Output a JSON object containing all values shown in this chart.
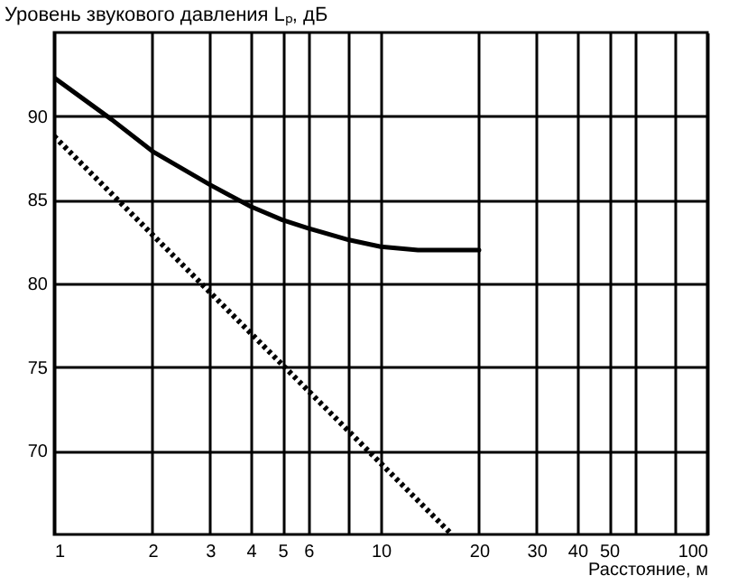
{
  "chart_data": {
    "type": "line",
    "ylabel": "Уровень звукового давления Lₚ, дБ",
    "xlabel": "Расстояние, м",
    "log": "x",
    "xlim": [
      1,
      100
    ],
    "xticks": [
      1,
      2,
      3,
      4,
      5,
      6,
      {
        "value": 8,
        "label": null
      },
      10,
      20,
      30,
      40,
      50,
      {
        "value": 60,
        "label": null
      },
      {
        "value": 80,
        "label": null
      },
      100
    ],
    "ylim": [
      65,
      95
    ],
    "yticks": [
      70,
      75,
      80,
      85,
      90
    ],
    "grid": true,
    "series": [
      {
        "color": "#000000",
        "line_style": "solid",
        "x": [
          1,
          1.5,
          2,
          3,
          4,
          5,
          6,
          8,
          10,
          13,
          16,
          20
        ],
        "values": [
          92.3,
          89.8,
          87.9,
          85.9,
          84.6,
          83.8,
          83.3,
          82.6,
          82.2,
          82.0,
          82.0,
          82.0
        ]
      },
      {
        "color": "#000000",
        "line_style": "dotted",
        "x": [
          1,
          16.5
        ],
        "values": [
          88.8,
          65
        ]
      }
    ]
  }
}
